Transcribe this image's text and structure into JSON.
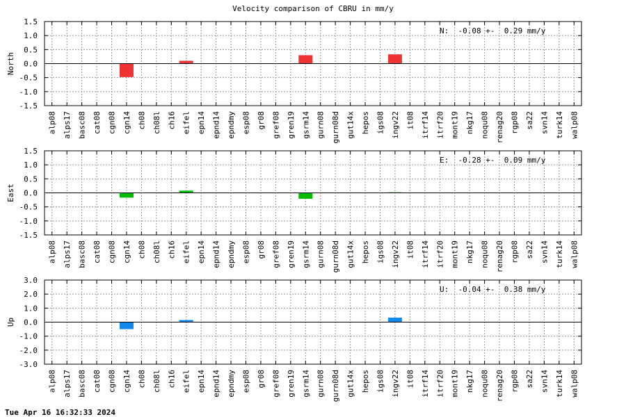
{
  "title": "Velocity comparison of CBRU in mm/y",
  "footer": "Tue Apr 16 16:32:33 2024",
  "chart_data": [
    {
      "type": "bar",
      "ylabel": "North",
      "annotation": "N:  -0.08 +-  0.29 mm/y",
      "ylim": [
        -1.5,
        1.5
      ],
      "yticks": [
        "1.5",
        "1.0",
        "0.5",
        "0.0",
        "-0.5",
        "-1.0",
        "-1.5"
      ],
      "color": "#ee3333",
      "grid": true,
      "categories": [
        "alp08",
        "alps17",
        "basc08",
        "cat08",
        "cgn08",
        "cgn14",
        "ch08",
        "ch08l",
        "ch16",
        "eifel",
        "epn14",
        "epnd14",
        "epndmy",
        "esp08",
        "gr08",
        "gref08",
        "gren19",
        "gsrm14",
        "gurn08",
        "gurn08d",
        "gut14x",
        "hepos",
        "igs08",
        "ingv22",
        "it08",
        "itrf14",
        "itrf20",
        "mont19",
        "nkg17",
        "noqu08",
        "renag20",
        "rgp08",
        "sa22",
        "svn14",
        "turk14",
        "walp08"
      ],
      "values": [
        0,
        0,
        0,
        0,
        0,
        -0.48,
        0,
        0,
        0,
        0.1,
        0,
        0,
        0,
        0,
        0,
        0,
        0,
        0.3,
        0,
        0,
        0,
        0,
        0,
        0.33,
        0,
        0,
        0,
        0,
        0,
        0,
        0,
        0,
        0,
        0,
        0,
        0
      ]
    },
    {
      "type": "bar",
      "ylabel": "East",
      "annotation": "E:  -0.28 +-  0.09 mm/y",
      "ylim": [
        -1.5,
        1.5
      ],
      "yticks": [
        "1.5",
        "1.0",
        "0.5",
        "0.0",
        "-0.5",
        "-1.0",
        "-1.5"
      ],
      "color": "#00bb00",
      "grid": true,
      "categories": [
        "alp08",
        "alps17",
        "basc08",
        "cat08",
        "cgn08",
        "cgn14",
        "ch08",
        "ch08l",
        "ch16",
        "eifel",
        "epn14",
        "epnd14",
        "epndmy",
        "esp08",
        "gr08",
        "gref08",
        "gren19",
        "gsrm14",
        "gurn08",
        "gurn08d",
        "gut14x",
        "hepos",
        "igs08",
        "ingv22",
        "it08",
        "itrf14",
        "itrf20",
        "mont19",
        "nkg17",
        "noqu08",
        "renag20",
        "rgp08",
        "sa22",
        "svn14",
        "turk14",
        "walp08"
      ],
      "values": [
        0,
        0,
        0,
        0,
        0,
        -0.17,
        0,
        0,
        0,
        0.08,
        0,
        0,
        0,
        0,
        0,
        0,
        0,
        -0.21,
        0,
        0,
        0,
        0,
        0,
        0.02,
        0,
        0,
        0,
        0,
        0,
        0,
        0,
        0,
        0,
        0,
        0,
        0
      ]
    },
    {
      "type": "bar",
      "ylabel": "Up",
      "annotation": "U:  -0.04 +-  0.38 mm/y",
      "ylim": [
        -3.0,
        3.0
      ],
      "yticks": [
        "3.0",
        "2.0",
        "1.0",
        "0.0",
        "-1.0",
        "-2.0",
        "-3.0"
      ],
      "color": "#1188ee",
      "grid": true,
      "categories": [
        "alp08",
        "alps17",
        "basc08",
        "cat08",
        "cgn08",
        "cgn14",
        "ch08",
        "ch08l",
        "ch16",
        "eifel",
        "epn14",
        "epnd14",
        "epndmy",
        "esp08",
        "gr08",
        "gref08",
        "gren19",
        "gsrm14",
        "gurn08",
        "gurn08d",
        "gut14x",
        "hepos",
        "igs08",
        "ingv22",
        "it08",
        "itrf14",
        "itrf20",
        "mont19",
        "nkg17",
        "noqu08",
        "renag20",
        "rgp08",
        "sa22",
        "svn14",
        "turk14",
        "walp08"
      ],
      "values": [
        0,
        0,
        0,
        0,
        0,
        -0.5,
        0,
        0,
        0,
        0.15,
        0,
        0,
        0,
        0,
        0,
        0,
        0,
        0,
        0,
        0,
        0,
        0,
        0,
        0.32,
        0,
        0,
        0,
        0,
        0,
        0,
        0,
        0,
        0,
        0,
        0,
        0
      ]
    }
  ]
}
